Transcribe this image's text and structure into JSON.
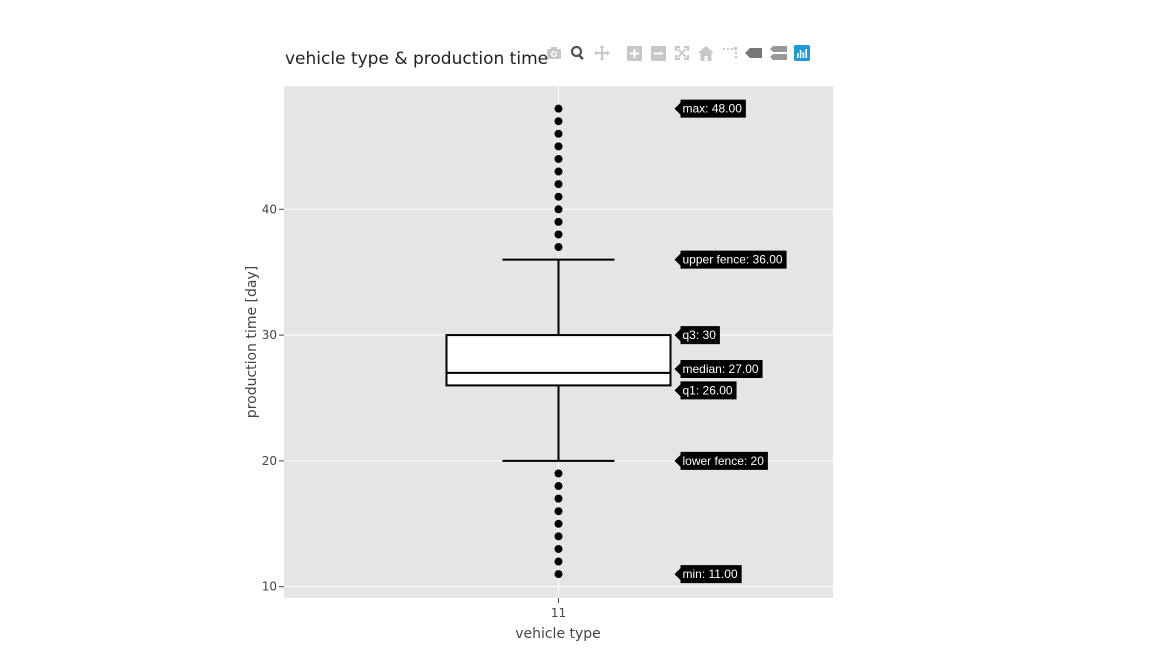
{
  "chart_data": {
    "type": "box",
    "title": "vehicle type & production time",
    "xlabel": "vehicle type",
    "ylabel": "production time [day]",
    "categories": [
      "11"
    ],
    "ylim": [
      9.1,
      49.8
    ],
    "yticks": [
      10,
      20,
      30,
      40
    ],
    "grid": true,
    "box": {
      "category": "11",
      "min": 11,
      "lower_fence": 20,
      "q1": 26,
      "median": 27,
      "q3": 30,
      "upper_fence": 36,
      "max": 48
    },
    "outliers": [
      11,
      12,
      13,
      14,
      15,
      16,
      17,
      18,
      19,
      37,
      38,
      39,
      40,
      41,
      42,
      43,
      44,
      45,
      46,
      47,
      48
    ],
    "annotations": [
      {
        "key": "max",
        "text": "max: 48.00",
        "y": 48
      },
      {
        "key": "upper_fence",
        "text": "upper fence: 36.00",
        "y": 36
      },
      {
        "key": "q3",
        "text": "q3: 30",
        "y": 30
      },
      {
        "key": "median",
        "text": "median: 27.00",
        "y": 27.3
      },
      {
        "key": "q1",
        "text": "q1: 26.00",
        "y": 25.6
      },
      {
        "key": "lower_fence",
        "text": "lower fence: 20",
        "y": 20
      },
      {
        "key": "min",
        "text": "min: 11.00",
        "y": 11
      }
    ],
    "colors": {
      "plot_bg": "#e5e5e5",
      "grid": "#ffffff",
      "box_line": "#000000",
      "box_fill": "#ffffff",
      "marker": "#000000",
      "label_bg": "#000000",
      "label_text": "#ffffff",
      "modebar_icon": "#c7c7c7",
      "modebar_active": "#1f9ad6"
    }
  },
  "modebar": {
    "icons": [
      "camera-icon",
      "zoom-icon",
      "pan-icon",
      "zoom-in-icon",
      "zoom-out-icon",
      "autoscale-icon",
      "reset-axes-icon",
      "spike-lines-icon",
      "hover-closest-icon",
      "hover-compare-icon",
      "plotly-logo-icon"
    ]
  }
}
